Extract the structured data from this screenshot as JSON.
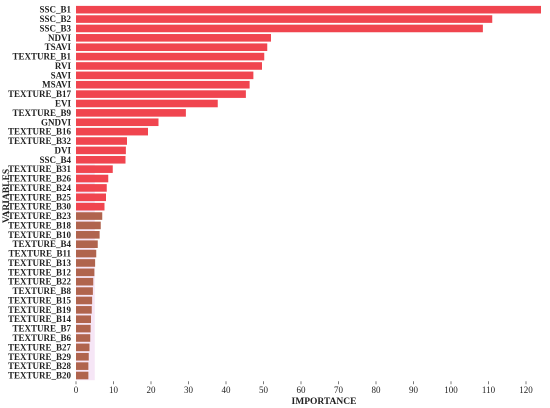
{
  "chart_data": {
    "type": "bar",
    "orientation": "horizontal",
    "xlabel": "IMPORTANCE",
    "ylabel": "VARIABLES",
    "xlim": [
      0,
      124
    ],
    "xticks": [
      0,
      10,
      20,
      30,
      40,
      50,
      60,
      70,
      80,
      90,
      100,
      110,
      120
    ],
    "grid": false,
    "highlight_band": {
      "from": 0,
      "to": 5,
      "color": "#f6e6f6"
    },
    "colors": {
      "bar": "#f0454f",
      "low_bar": "#b0644e"
    },
    "categories": [
      "SSC_B1",
      "SSC_B2",
      "SSC_B3",
      "NDVI",
      "TSAVI",
      "TEXTURE_B1",
      "RVI",
      "SAVI",
      "MSAVI",
      "TEXTURE_B17",
      "EVI",
      "TEXTURE_B9",
      "GNDVI",
      "TEXTURE_B16",
      "TEXTURE_B32",
      "DVI",
      "SSC_B4",
      "TEXTURE_B31",
      "TEXTURE_B26",
      "TEXTURE_B24",
      "TEXTURE_B25",
      "TEXTURE_B30",
      "TEXTURE_B23",
      "TEXTURE_B18",
      "TEXTURE_B10",
      "TEXTURE_B4",
      "TEXTURE_B11",
      "TEXTURE_B13",
      "TEXTURE_B12",
      "TEXTURE_B22",
      "TEXTURE_B8",
      "TEXTURE_B15",
      "TEXTURE_B19",
      "TEXTURE_B14",
      "TEXTURE_B7",
      "TEXTURE_B6",
      "TEXTURE_B27",
      "TEXTURE_B29",
      "TEXTURE_B28",
      "TEXTURE_B20"
    ],
    "values": [
      124,
      111,
      108.5,
      52,
      51,
      50.2,
      49.6,
      47.3,
      46.3,
      45.3,
      37.8,
      29.3,
      22,
      19.2,
      13.6,
      13.3,
      13.2,
      9.8,
      8.6,
      8.2,
      8.0,
      7.6,
      7.0,
      6.6,
      6.3,
      5.8,
      5.4,
      5.1,
      4.9,
      4.6,
      4.5,
      4.3,
      4.2,
      4.0,
      3.9,
      3.8,
      3.6,
      3.4,
      3.3,
      3.3
    ]
  }
}
